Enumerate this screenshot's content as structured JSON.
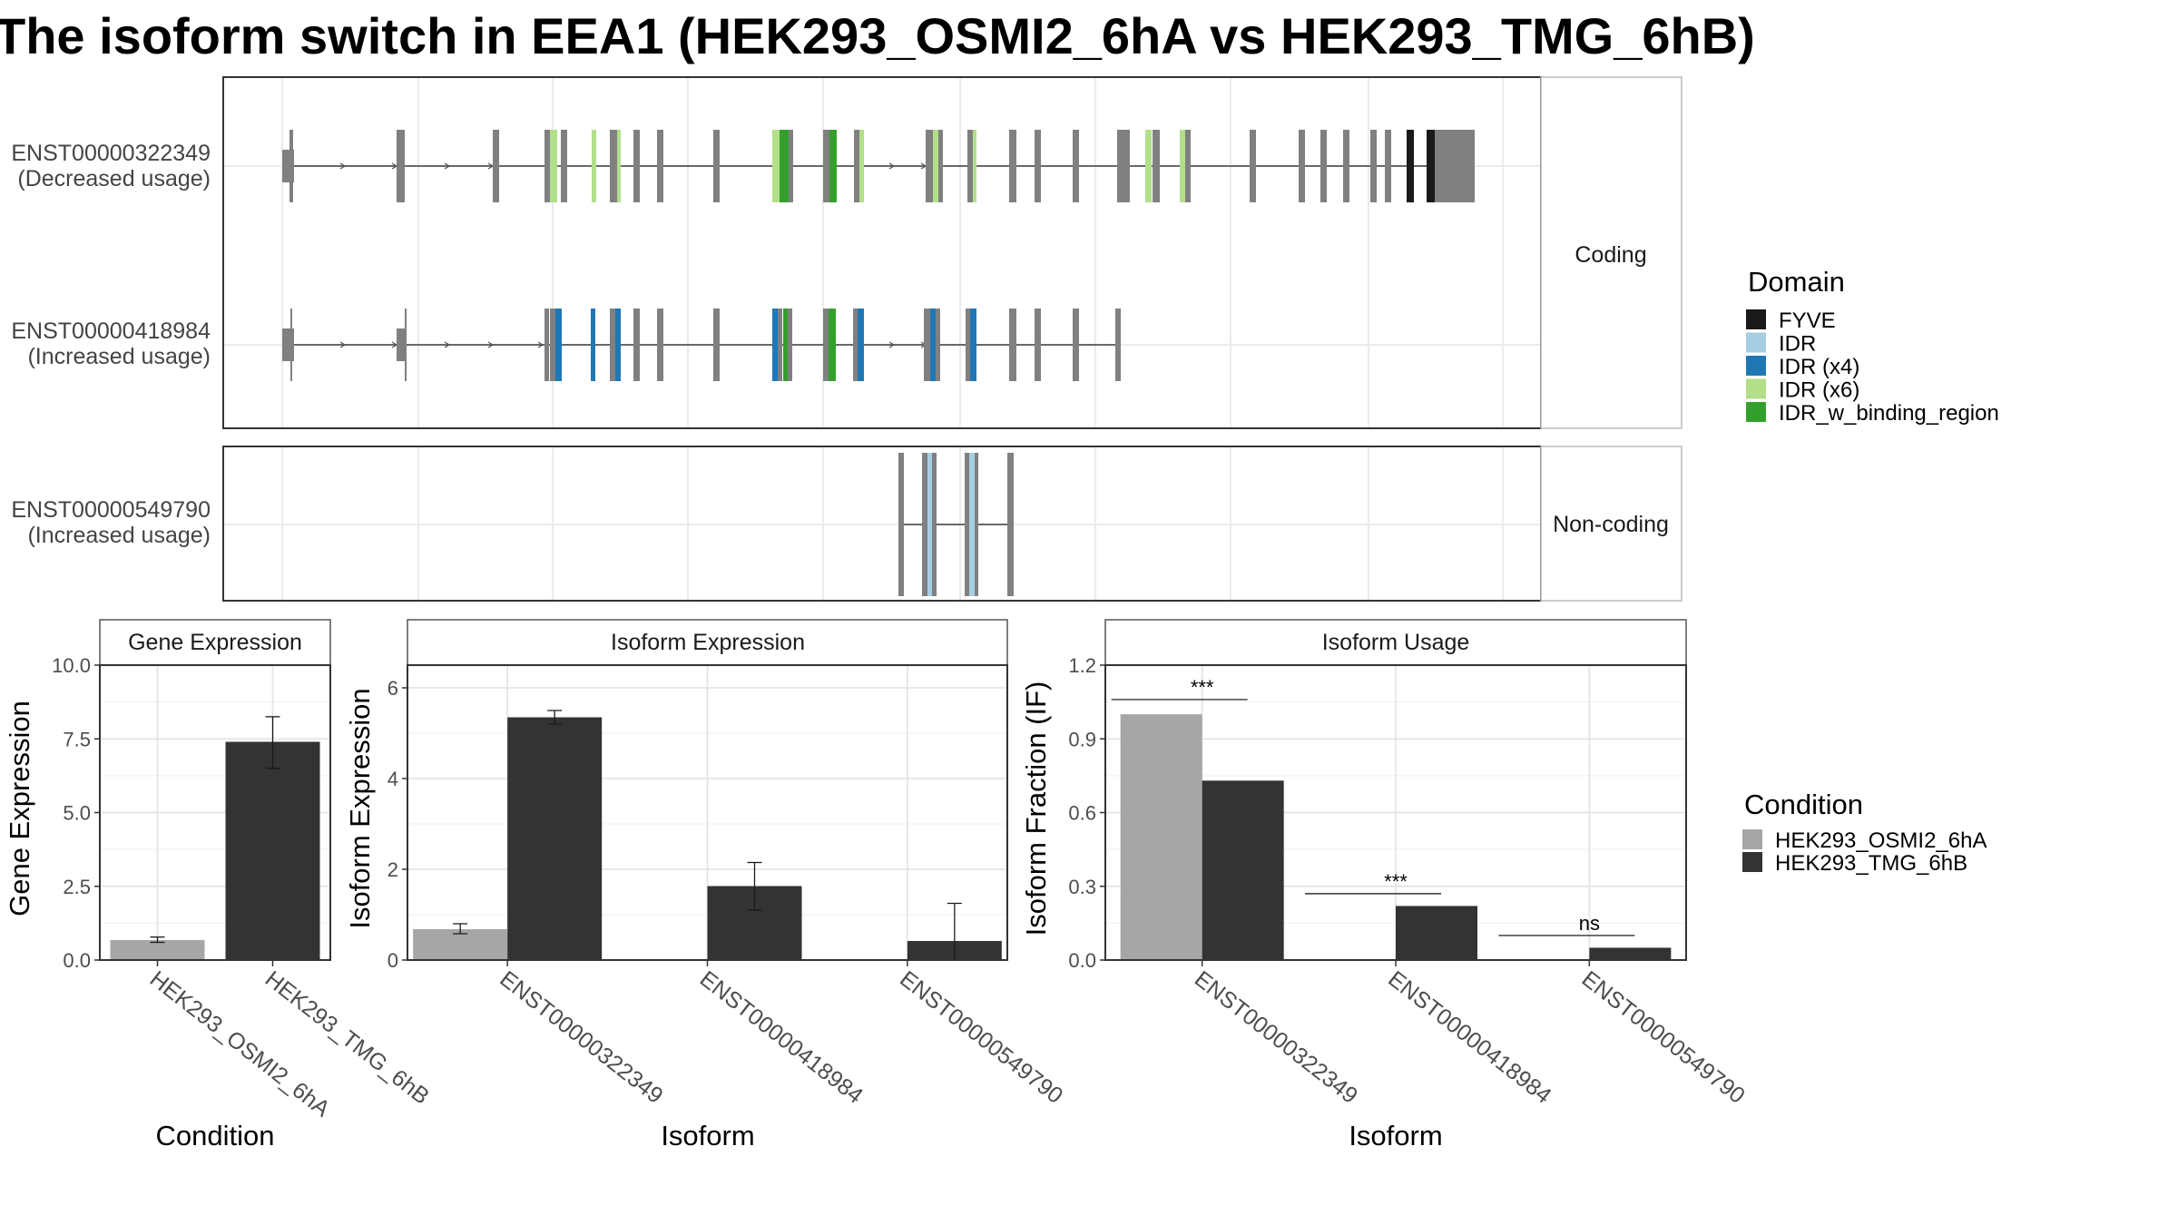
{
  "chart_data": {
    "title": "The isoform switch in EEA1 (HEK293_OSMI2_6hA vs HEK293_TMG_6hB)",
    "structure": {
      "type": "gene-model",
      "facets": [
        "Coding",
        "Non-coding"
      ],
      "transcripts": [
        {
          "id": "ENST00000322349",
          "usage": "(Decreased usage)",
          "facet": "Coding"
        },
        {
          "id": "ENST00000418984",
          "usage": "(Increased usage)",
          "facet": "Coding"
        },
        {
          "id": "ENST00000549790",
          "usage": "(Increased usage)",
          "facet": "Non-coding"
        }
      ]
    },
    "domain_legend": {
      "title": "Domain",
      "items": [
        {
          "label": "FYVE",
          "color": "#1a1a1a"
        },
        {
          "label": "IDR",
          "color": "#a6cee3"
        },
        {
          "label": "IDR (x4)",
          "color": "#1f78b4"
        },
        {
          "label": "IDR (x6)",
          "color": "#b2df8a"
        },
        {
          "label": "IDR_w_binding_region",
          "color": "#33a02c"
        }
      ]
    },
    "condition_legend": {
      "title": "Condition",
      "items": [
        {
          "label": "HEK293_OSMI2_6hA",
          "color": "#a6a6a6"
        },
        {
          "label": "HEK293_TMG_6hB",
          "color": "#333333"
        }
      ]
    },
    "gene_expression": {
      "type": "bar",
      "strip": "Gene Expression",
      "xlabel": "Condition",
      "ylabel": "Gene Expression",
      "ylim": [
        0,
        10
      ],
      "yticks": [
        "0.0",
        "2.5",
        "5.0",
        "7.5",
        "10.0"
      ],
      "categories": [
        "HEK293_OSMI2_6hA",
        "HEK293_TMG_6hB"
      ],
      "values": [
        0.68,
        7.4
      ],
      "error_low": [
        0.6,
        6.5
      ],
      "error_high": [
        0.78,
        8.25
      ]
    },
    "isoform_expression": {
      "type": "bar",
      "strip": "Isoform Expression",
      "xlabel": "Isoform",
      "ylabel": "Isoform Expression",
      "ylim": [
        0,
        6.5
      ],
      "yticks": [
        "0",
        "2",
        "4",
        "6"
      ],
      "categories": [
        "ENST00000322349",
        "ENST00000418984",
        "ENST00000549790"
      ],
      "series": [
        {
          "name": "HEK293_OSMI2_6hA",
          "values": [
            0.68,
            0.0,
            0.0
          ],
          "error_low": [
            0.58,
            0.0,
            0.0
          ],
          "error_high": [
            0.8,
            0.0,
            0.0
          ]
        },
        {
          "name": "HEK293_TMG_6hB",
          "values": [
            5.35,
            1.63,
            0.42
          ],
          "error_low": [
            5.2,
            1.1,
            0.0
          ],
          "error_high": [
            5.5,
            2.15,
            1.25
          ]
        }
      ]
    },
    "isoform_usage": {
      "type": "bar",
      "strip": "Isoform Usage",
      "xlabel": "Isoform",
      "ylabel": "Isoform Fraction (IF)",
      "ylim": [
        0,
        1.2
      ],
      "yticks": [
        "0.0",
        "0.3",
        "0.6",
        "0.9",
        "1.2"
      ],
      "categories": [
        "ENST00000322349",
        "ENST00000418984",
        "ENST00000549790"
      ],
      "series": [
        {
          "name": "HEK293_OSMI2_6hA",
          "values": [
            1.0,
            0.0,
            0.0
          ]
        },
        {
          "name": "HEK293_TMG_6hB",
          "values": [
            0.73,
            0.22,
            0.05
          ]
        }
      ],
      "significance": [
        {
          "label": "***",
          "y": 1.06
        },
        {
          "label": "***",
          "y": 0.27
        },
        {
          "label": "ns",
          "y": 0.1
        }
      ]
    }
  }
}
